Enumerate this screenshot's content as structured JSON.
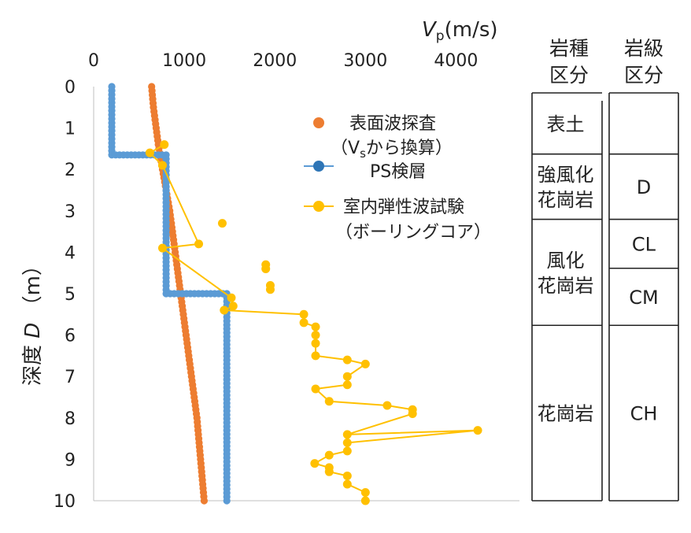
{
  "chart_data": {
    "type": "scatter",
    "x_title_var": "V",
    "x_title_sub": "p",
    "x_title_unit": "(m/s)",
    "y_title_prefix": "深度",
    "y_title_var": "D",
    "y_title_unit": "（m）",
    "x_ticks": [
      "0",
      "1000",
      "2000",
      "3000",
      "4000"
    ],
    "y_ticks": [
      "0",
      "1",
      "2",
      "3",
      "4",
      "5",
      "6",
      "7",
      "8",
      "9",
      "10"
    ],
    "xlim": [
      0,
      4700
    ],
    "ylim": [
      0,
      10
    ],
    "y_inverted": true,
    "x_axis_position": "top",
    "grid": false,
    "legend_position": "right-inside-top",
    "series": [
      {
        "name_line1": "表面波探査",
        "name_line2_pre": "（V",
        "name_line2_sub": "s",
        "name_line2_post": "から換算）",
        "color": "#ED7D31",
        "marker": "circle",
        "line": false,
        "points": [
          {
            "x": 640,
            "y": 0.0
          },
          {
            "x": 660,
            "y": 0.5
          },
          {
            "x": 690,
            "y": 1.0
          },
          {
            "x": 720,
            "y": 1.5
          },
          {
            "x": 760,
            "y": 2.0
          },
          {
            "x": 800,
            "y": 2.5
          },
          {
            "x": 840,
            "y": 3.0
          },
          {
            "x": 870,
            "y": 3.5
          },
          {
            "x": 900,
            "y": 4.0
          },
          {
            "x": 930,
            "y": 4.5
          },
          {
            "x": 960,
            "y": 5.0
          },
          {
            "x": 990,
            "y": 5.5
          },
          {
            "x": 1020,
            "y": 6.0
          },
          {
            "x": 1050,
            "y": 6.5
          },
          {
            "x": 1080,
            "y": 7.0
          },
          {
            "x": 1110,
            "y": 7.5
          },
          {
            "x": 1140,
            "y": 8.0
          },
          {
            "x": 1160,
            "y": 8.5
          },
          {
            "x": 1180,
            "y": 9.0
          },
          {
            "x": 1200,
            "y": 9.5
          },
          {
            "x": 1220,
            "y": 10.0
          }
        ]
      },
      {
        "name": "PS検層",
        "color": "#5B9BD5",
        "legend_marker_color": "#2E75B6",
        "marker": "circle",
        "line": true,
        "points": [
          {
            "x": 200,
            "y": 0.0
          },
          {
            "x": 200,
            "y": 1.65
          },
          {
            "x": 800,
            "y": 1.65
          },
          {
            "x": 800,
            "y": 5.0
          },
          {
            "x": 1470,
            "y": 5.0
          },
          {
            "x": 1470,
            "y": 10.0
          }
        ]
      },
      {
        "name_line1": "室内弾性波試験",
        "name_line2": "（ボーリングコア）",
        "color": "#FFC000",
        "marker": "circle",
        "line": true,
        "points": [
          {
            "x": 780,
            "y": 1.4
          },
          {
            "x": 620,
            "y": 1.6
          },
          {
            "x": 760,
            "y": 1.9
          },
          {
            "x": 1160,
            "y": 3.8
          },
          {
            "x": 760,
            "y": 3.9
          },
          {
            "x": 1520,
            "y": 5.1
          },
          {
            "x": 1540,
            "y": 5.3
          },
          {
            "x": 1440,
            "y": 5.4
          },
          {
            "x": 2320,
            "y": 5.5
          },
          {
            "x": 2320,
            "y": 5.7
          },
          {
            "x": 2450,
            "y": 5.8
          },
          {
            "x": 2450,
            "y": 6.0
          },
          {
            "x": 2450,
            "y": 6.2
          },
          {
            "x": 2450,
            "y": 6.5
          },
          {
            "x": 2800,
            "y": 6.6
          },
          {
            "x": 3000,
            "y": 6.7
          },
          {
            "x": 2800,
            "y": 7.0
          },
          {
            "x": 2800,
            "y": 7.2
          },
          {
            "x": 2450,
            "y": 7.3
          },
          {
            "x": 2600,
            "y": 7.6
          },
          {
            "x": 3240,
            "y": 7.7
          },
          {
            "x": 3520,
            "y": 7.8
          },
          {
            "x": 3520,
            "y": 7.9
          },
          {
            "x": 2800,
            "y": 8.4
          },
          {
            "x": 4240,
            "y": 8.3
          },
          {
            "x": 2800,
            "y": 8.6
          },
          {
            "x": 2800,
            "y": 8.8
          },
          {
            "x": 2600,
            "y": 8.9
          },
          {
            "x": 2440,
            "y": 9.1
          },
          {
            "x": 2600,
            "y": 9.2
          },
          {
            "x": 2600,
            "y": 9.3
          },
          {
            "x": 2800,
            "y": 9.4
          },
          {
            "x": 2800,
            "y": 9.6
          },
          {
            "x": 3000,
            "y": 9.8
          },
          {
            "x": 3000,
            "y": 10.0
          }
        ],
        "extra_points": [
          {
            "x": 1420,
            "y": 3.3
          },
          {
            "x": 1900,
            "y": 4.3
          },
          {
            "x": 1900,
            "y": 4.4
          },
          {
            "x": 1950,
            "y": 4.8
          },
          {
            "x": 1950,
            "y": 4.9
          }
        ]
      }
    ],
    "rock_type_column": {
      "header_line1": "岩種",
      "header_line2": "区分",
      "rows": [
        {
          "label_lines": [
            "表土"
          ],
          "from": 0.0,
          "to": 1.5
        },
        {
          "label_lines": [
            "強風化",
            "花崗岩"
          ],
          "from": 1.5,
          "to": 3.1
        },
        {
          "label_lines": [
            "風化",
            "花崗岩"
          ],
          "from": 3.1,
          "to": 5.7
        },
        {
          "label_lines": [
            "花崗岩"
          ],
          "from": 5.7,
          "to": 10.0
        }
      ]
    },
    "rock_class_column": {
      "header_line1": "岩級",
      "header_line2": "区分",
      "rows": [
        {
          "label": "",
          "from": 0.0,
          "to": 1.5
        },
        {
          "label": "D",
          "from": 1.5,
          "to": 3.1
        },
        {
          "label": "CL",
          "from": 3.1,
          "to": 4.3
        },
        {
          "label": "CM",
          "from": 4.3,
          "to": 5.7
        },
        {
          "label": "CH",
          "from": 5.7,
          "to": 10.0
        }
      ]
    }
  }
}
